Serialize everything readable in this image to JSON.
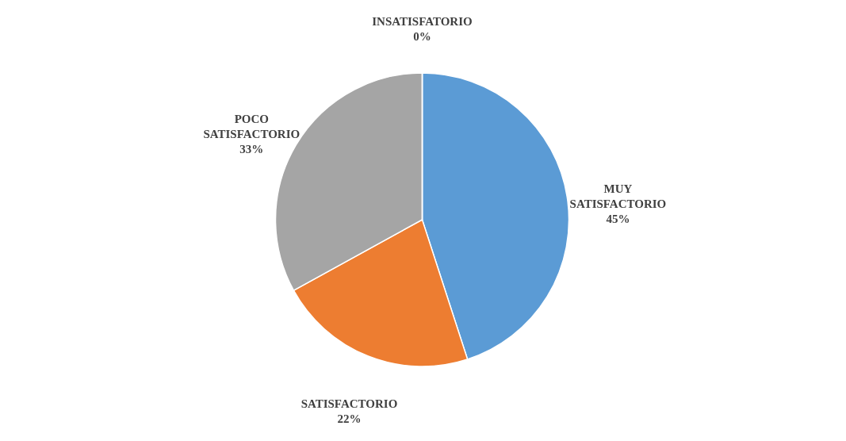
{
  "chart_data": {
    "type": "pie",
    "categories": [
      "MUY SATISFACTORIO",
      "SATISFACTORIO",
      "POCO SATISFACTORIO",
      "INSATISFATORIO"
    ],
    "values": [
      45,
      22,
      33,
      0
    ],
    "colors": [
      "#5b9bd5",
      "#ed7d31",
      "#a5a5a5",
      "#ffc000"
    ],
    "value_labels": [
      "45%",
      "22%",
      "33%",
      "0%"
    ],
    "legend": false
  }
}
